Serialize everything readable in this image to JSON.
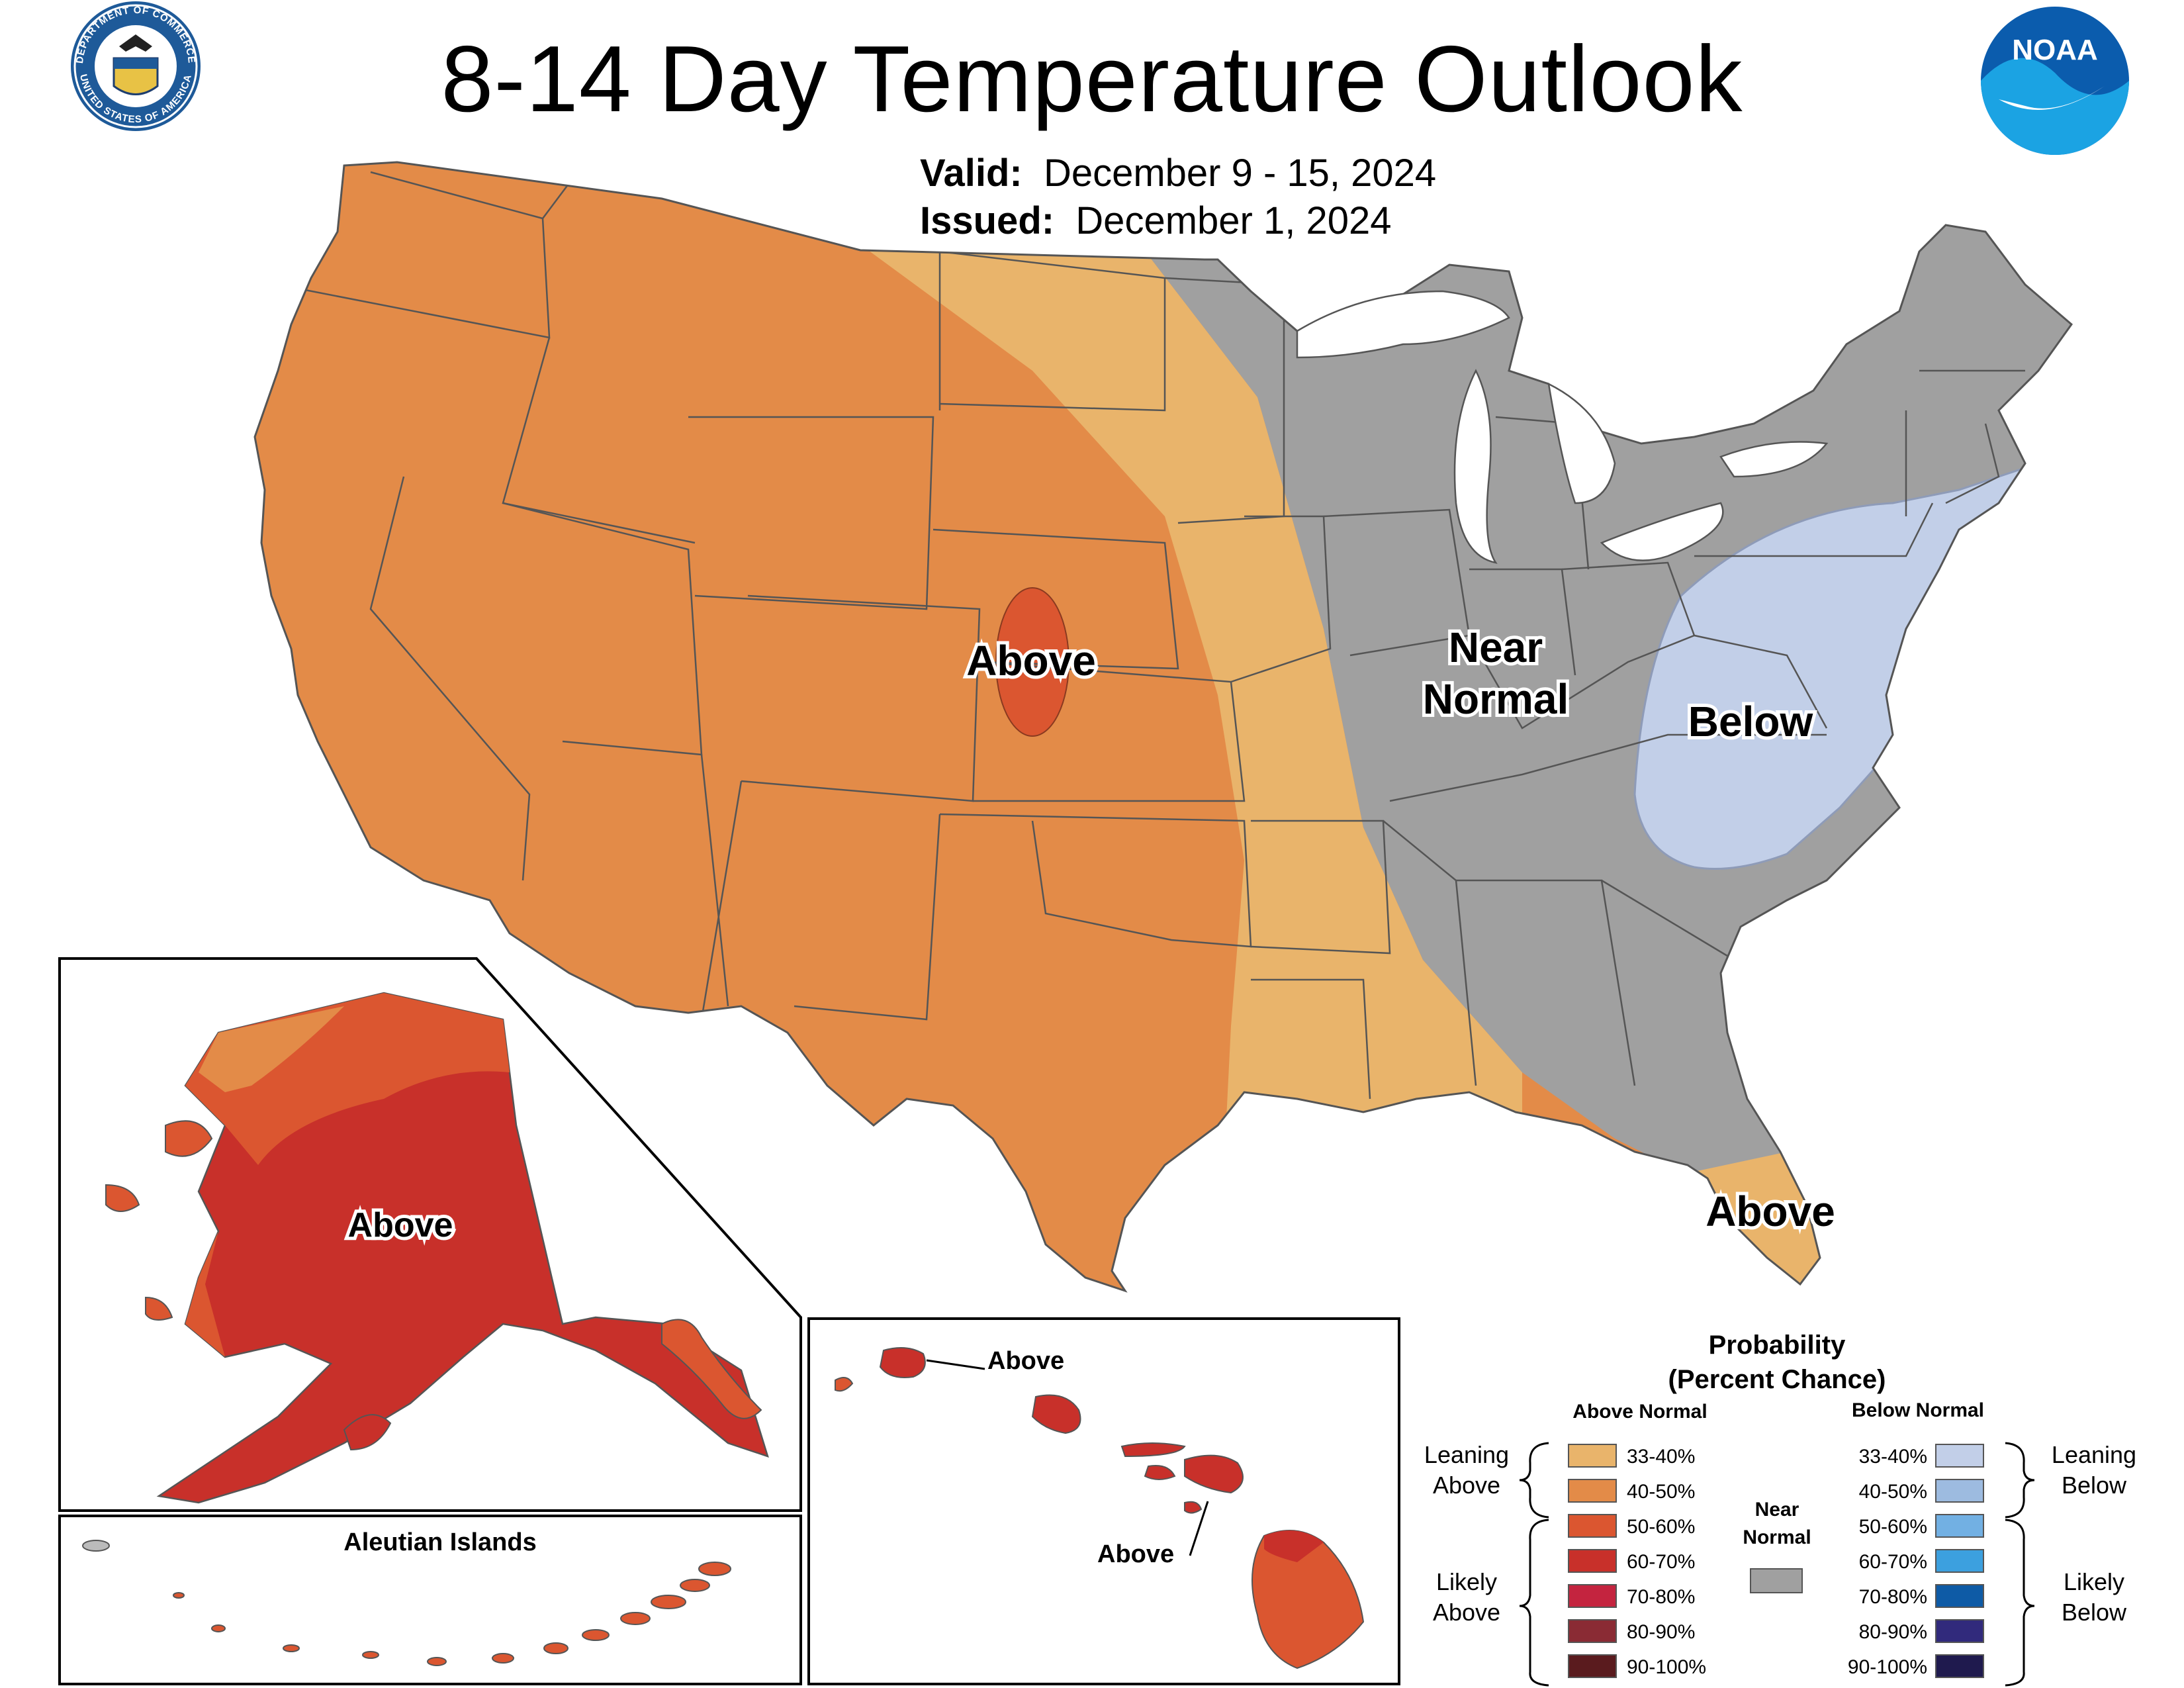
{
  "header": {
    "title": "8-14 Day Temperature Outlook",
    "valid_label": "Valid:",
    "valid_dates": "December 9 - 15, 2024",
    "issued_label": "Issued:",
    "issued_date": "December 1, 2024"
  },
  "logos": {
    "commerce_top": "DEPARTMENT OF COMMERCE",
    "commerce_bottom": "UNITED STATES OF AMERICA",
    "noaa": "NOAA"
  },
  "regions": {
    "conus_above": "Above",
    "near_line1": "Near",
    "near_line2": "Normal",
    "below": "Below",
    "florida_above": "Above",
    "alaska_above": "Above",
    "hawaii_above_1": "Above",
    "hawaii_above_2": "Above"
  },
  "insets": {
    "aleutian_title": "Aleutian Islands"
  },
  "legend": {
    "title_line1": "Probability",
    "title_line2": "(Percent Chance)",
    "above_header": "Above Normal",
    "below_header": "Below Normal",
    "near_line1": "Near",
    "near_line2": "Normal",
    "leaning_above_1": "Leaning",
    "leaning_above_2": "Above",
    "likely_above_1": "Likely",
    "likely_above_2": "Above",
    "leaning_below_1": "Leaning",
    "leaning_below_2": "Below",
    "likely_below_1": "Likely",
    "likely_below_2": "Below",
    "above_bins": [
      {
        "label": "33-40%",
        "color": "#E9B46B"
      },
      {
        "label": "40-50%",
        "color": "#E38B48"
      },
      {
        "label": "50-60%",
        "color": "#DB5630"
      },
      {
        "label": "60-70%",
        "color": "#C8302A"
      },
      {
        "label": "70-80%",
        "color": "#C4243F"
      },
      {
        "label": "80-90%",
        "color": "#8A2B34"
      },
      {
        "label": "90-100%",
        "color": "#5A1B1E"
      }
    ],
    "below_bins": [
      {
        "label": "33-40%",
        "color": "#C2CFE8"
      },
      {
        "label": "40-50%",
        "color": "#9DBBE0"
      },
      {
        "label": "50-60%",
        "color": "#72B0E3"
      },
      {
        "label": "60-70%",
        "color": "#3CA0DF"
      },
      {
        "label": "70-80%",
        "color": "#0E5BA6"
      },
      {
        "label": "80-90%",
        "color": "#312A7C"
      },
      {
        "label": "90-100%",
        "color": "#1F1A4E"
      }
    ],
    "near_color": "#A0A0A0"
  }
}
